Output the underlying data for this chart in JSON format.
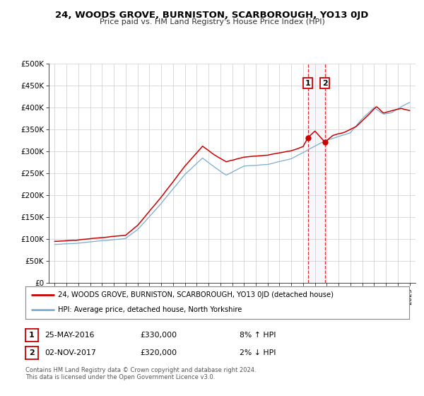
{
  "title": "24, WOODS GROVE, BURNISTON, SCARBOROUGH, YO13 0JD",
  "subtitle": "Price paid vs. HM Land Registry's House Price Index (HPI)",
  "legend_line1": "24, WOODS GROVE, BURNISTON, SCARBOROUGH, YO13 0JD (detached house)",
  "legend_line2": "HPI: Average price, detached house, North Yorkshire",
  "footer1": "Contains HM Land Registry data © Crown copyright and database right 2024.",
  "footer2": "This data is licensed under the Open Government Licence v3.0.",
  "sale1_label": "1",
  "sale1_date": "25-MAY-2016",
  "sale1_price": "£330,000",
  "sale1_hpi": "8% ↑ HPI",
  "sale1_year": 2016.4,
  "sale1_value": 330000,
  "sale2_label": "2",
  "sale2_date": "02-NOV-2017",
  "sale2_price": "£320,000",
  "sale2_hpi": "2% ↓ HPI",
  "sale2_year": 2017.84,
  "sale2_value": 320000,
  "price_line_color": "#cc0000",
  "hpi_line_color": "#7aadcf",
  "marker_color": "#cc0000",
  "vline_color": "#cc0000",
  "label_box_color": "#cc0000",
  "background_color": "#ffffff",
  "grid_color": "#cccccc",
  "ylim": [
    0,
    500000
  ],
  "yticks": [
    0,
    50000,
    100000,
    150000,
    200000,
    250000,
    300000,
    350000,
    400000,
    450000,
    500000
  ],
  "ytick_labels": [
    "£0",
    "£50K",
    "£100K",
    "£150K",
    "£200K",
    "£250K",
    "£300K",
    "£350K",
    "£400K",
    "£450K",
    "£500K"
  ],
  "xlim_start": 1994.5,
  "xlim_end": 2025.5
}
